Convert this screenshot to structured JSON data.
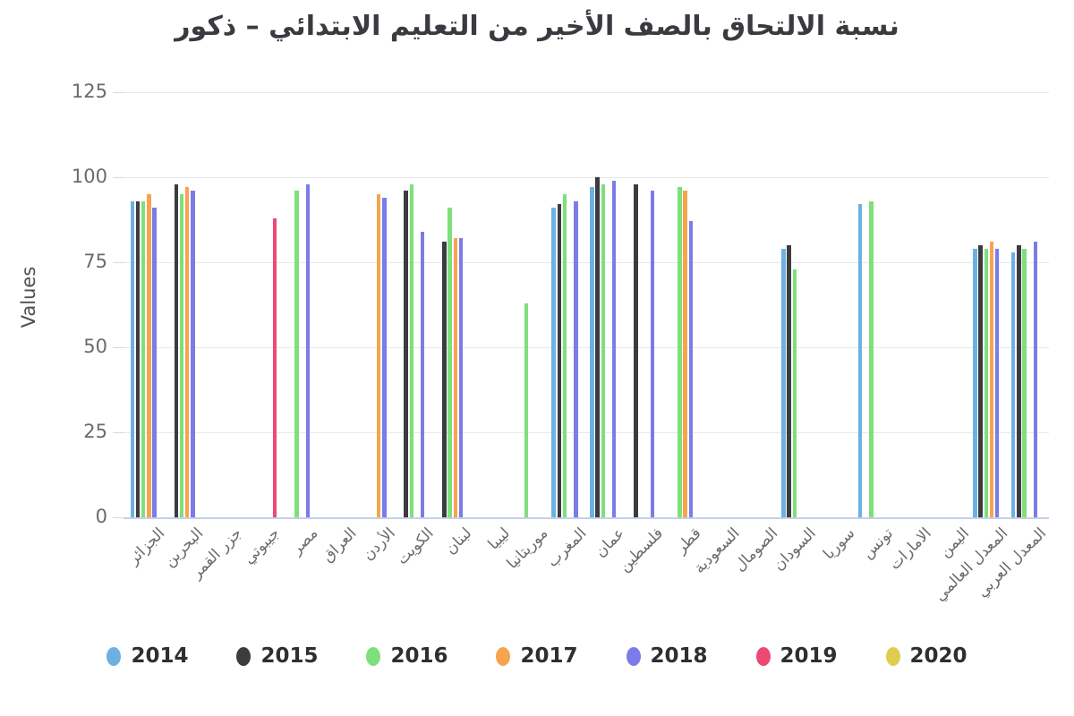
{
  "title": "نسبة الالتحاق بالصف الأخير من التعليم الابتدائي – ذكور",
  "y_axis_label": "Values",
  "chart_data": {
    "type": "bar",
    "title": "نسبة الالتحاق بالصف الأخير من التعليم الابتدائي – ذكور",
    "xlabel": "",
    "ylabel": "Values",
    "ylim": [
      0,
      125
    ],
    "yticks": [
      0,
      25,
      50,
      75,
      100,
      125
    ],
    "grid": true,
    "legend_position": "bottom",
    "categories": [
      "الجزائر",
      "البحرين",
      "جزر القمر",
      "جيبوتي",
      "مصر",
      "العراق",
      "الأردن",
      "الكويت",
      "لبنان",
      "ليبيا",
      "موريتانيا",
      "المغرب",
      "عمان",
      "فلسطين",
      "قطر",
      "السعودية",
      "الصومال",
      "السودان",
      "سوريا",
      "تونس",
      "الامارات",
      "اليمن",
      "المعدل العالمي",
      "المعدل العربي"
    ],
    "series": [
      {
        "name": "2014",
        "color": "#6cb1e1",
        "values": [
          93,
          null,
          null,
          null,
          null,
          null,
          null,
          null,
          null,
          null,
          null,
          91,
          97,
          null,
          null,
          null,
          null,
          79,
          null,
          92,
          null,
          null,
          79,
          78
        ]
      },
      {
        "name": "2015",
        "color": "#3b3b40",
        "values": [
          93,
          98,
          null,
          null,
          null,
          null,
          null,
          96,
          81,
          null,
          null,
          92,
          100,
          98,
          null,
          null,
          null,
          80,
          null,
          null,
          null,
          null,
          80,
          80
        ]
      },
      {
        "name": "2016",
        "color": "#7de07a",
        "values": [
          93,
          95,
          null,
          null,
          96,
          null,
          null,
          98,
          91,
          null,
          63,
          95,
          98,
          null,
          97,
          null,
          null,
          73,
          null,
          93,
          null,
          null,
          79,
          79
        ]
      },
      {
        "name": "2017",
        "color": "#f7a44e",
        "values": [
          95,
          97,
          null,
          null,
          null,
          null,
          95,
          null,
          82,
          null,
          null,
          null,
          null,
          null,
          96,
          null,
          null,
          null,
          null,
          null,
          null,
          null,
          81,
          null
        ]
      },
      {
        "name": "2018",
        "color": "#7b7ce8",
        "values": [
          91,
          96,
          null,
          null,
          98,
          null,
          94,
          84,
          82,
          null,
          null,
          93,
          99,
          96,
          87,
          null,
          null,
          null,
          null,
          null,
          null,
          null,
          79,
          81
        ]
      },
      {
        "name": "2019",
        "color": "#ec4a72",
        "values": [
          null,
          null,
          null,
          88,
          null,
          null,
          null,
          null,
          null,
          null,
          null,
          null,
          null,
          null,
          null,
          null,
          null,
          null,
          null,
          null,
          null,
          null,
          null,
          null
        ]
      },
      {
        "name": "2020",
        "color": "#e0cc4e",
        "values": [
          null,
          null,
          null,
          null,
          null,
          null,
          null,
          null,
          null,
          null,
          null,
          null,
          null,
          null,
          null,
          null,
          null,
          null,
          null,
          null,
          null,
          null,
          null,
          null
        ]
      }
    ]
  }
}
